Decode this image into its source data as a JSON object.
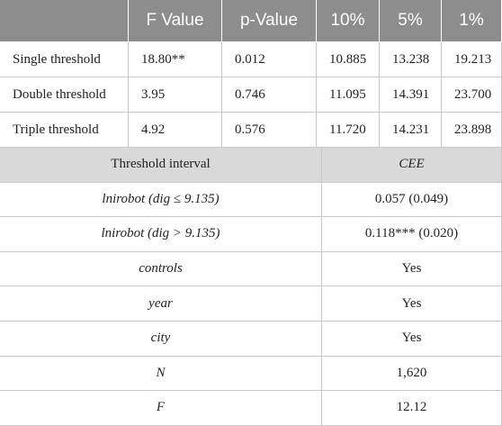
{
  "table1": {
    "columns": [
      "F Value",
      "p-Value",
      "10%",
      "5%",
      "1%"
    ],
    "rows": [
      {
        "label": "Single threshold",
        "values": [
          "18.80**",
          "0.012",
          "10.885",
          "13.238",
          "19.213"
        ]
      },
      {
        "label": "Double threshold",
        "values": [
          "3.95",
          "0.746",
          "11.095",
          "14.391",
          "23.700"
        ]
      },
      {
        "label": "Triple threshold",
        "values": [
          "4.92",
          "0.576",
          "11.720",
          "14.231",
          "23.898"
        ]
      }
    ]
  },
  "table2": {
    "header": [
      "Threshold interval",
      "CEE"
    ],
    "rows": [
      [
        "lnirobot (dig ≤ 9.135)",
        "0.057 (0.049)"
      ],
      [
        "lnirobot (dig > 9.135)",
        "0.118*** (0.020)"
      ],
      [
        "controls",
        "Yes"
      ],
      [
        "year",
        "Yes"
      ],
      [
        "city",
        "Yes"
      ],
      [
        "N",
        "1,620"
      ],
      [
        "F",
        "12.12"
      ]
    ]
  }
}
